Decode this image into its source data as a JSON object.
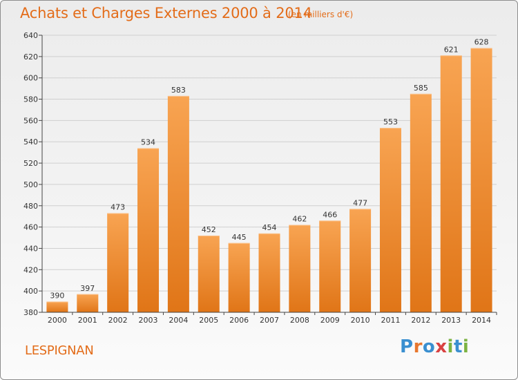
{
  "chart_data": {
    "type": "bar",
    "title": "Achats et Charges Externes 2000 à 2014",
    "subtitle": "(en milliers d'€)",
    "categories": [
      "2000",
      "2001",
      "2002",
      "2003",
      "2004",
      "2005",
      "2006",
      "2007",
      "2008",
      "2009",
      "2010",
      "2011",
      "2012",
      "2013",
      "2014"
    ],
    "values": [
      390,
      397,
      473,
      534,
      583,
      452,
      445,
      454,
      462,
      466,
      477,
      553,
      585,
      621,
      628
    ],
    "ylim": [
      380,
      640
    ],
    "yticks": [
      380,
      400,
      420,
      440,
      460,
      480,
      500,
      520,
      540,
      560,
      580,
      600,
      620,
      640
    ],
    "grid": true,
    "colors": {
      "bar": "#f0882e",
      "text": "#e36c19"
    }
  },
  "commune": "LESPIGNAN",
  "logo": {
    "text": "Proxiti",
    "letters": [
      "P",
      "r",
      "o",
      "x",
      "i",
      "t",
      "i"
    ]
  }
}
